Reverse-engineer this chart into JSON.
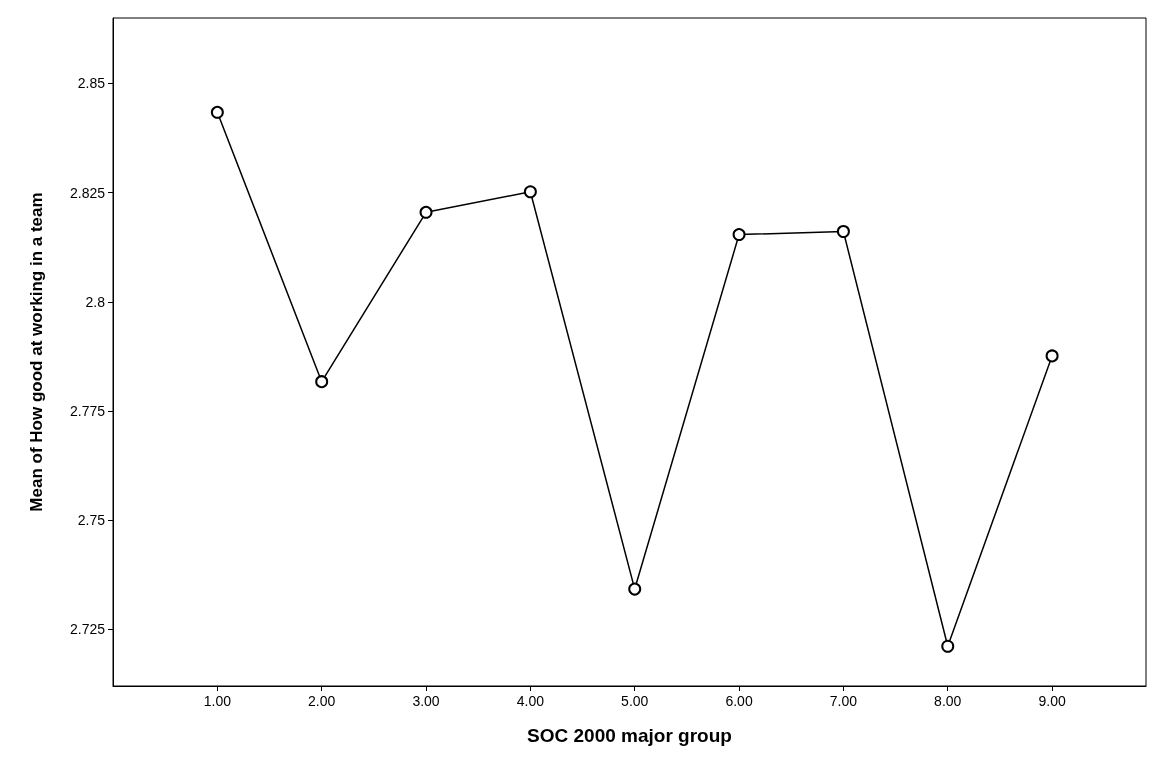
{
  "chart_data": {
    "type": "line",
    "xlabel": "SOC 2000 major group",
    "ylabel": "Mean of How good at working in a team",
    "x": [
      1,
      2,
      3,
      4,
      5,
      6,
      7,
      8,
      9
    ],
    "series": [
      {
        "color": "#000000",
        "values": [
          2.8434,
          2.7817,
          2.8205,
          2.8252,
          2.7342,
          2.8154,
          2.8161,
          2.7211,
          2.7876
        ]
      }
    ],
    "xlim": [
      0,
      9.9
    ],
    "xticks": [
      {
        "value": 1,
        "label": "1.00"
      },
      {
        "value": 2,
        "label": "2.00"
      },
      {
        "value": 3,
        "label": "3.00"
      },
      {
        "value": 4,
        "label": "4.00"
      },
      {
        "value": 5,
        "label": "5.00"
      },
      {
        "value": 6,
        "label": "6.00"
      },
      {
        "value": 7,
        "label": "7.00"
      },
      {
        "value": 8,
        "label": "8.00"
      },
      {
        "value": 9,
        "label": "9.00"
      }
    ],
    "ylim": [
      2.712,
      2.865
    ],
    "yticks": [
      2.725,
      2.75,
      2.775,
      2.8,
      2.825,
      2.85
    ],
    "grid": false,
    "marker": "circle",
    "line_style": "solid"
  }
}
